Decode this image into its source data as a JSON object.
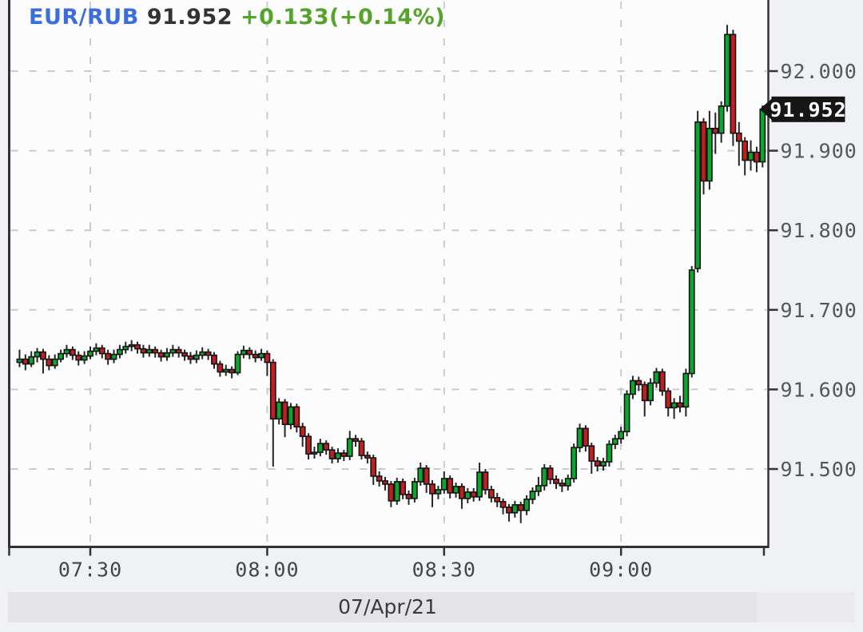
{
  "header": {
    "symbol": "EUR/RUB",
    "last_price": "91.952",
    "change": "+0.133(+0.14%)"
  },
  "price_tag": "91.952",
  "date_label": "07/Apr/21",
  "colors": {
    "up_candle": "#0ca52e",
    "down_candle": "#c01f21",
    "candle_outline": "#141414",
    "wick": "#26262a",
    "grid": "#c9cbd0",
    "axis_text_y": "#55565a",
    "axis_text_x": "#45464a",
    "axis_line": "#333333",
    "title_symbol": "#3c6edb",
    "title_price": "#333333",
    "title_change": "#54a42c",
    "tag_bg": "#161616",
    "tag_text": "#ffffff",
    "plot_bg": "#fcfcfd",
    "page_bg": "#f0f1f4",
    "datebar_bg": "#e4e4e7",
    "datebar_bg_right": "#ebebee",
    "date_text": "#3a3a3c"
  },
  "chart_data": {
    "type": "candlestick",
    "title": "EUR/RUB intraday",
    "symbol": "EUR/RUB",
    "interval": "1-minute",
    "date": "07/Apr/21",
    "last_price": 91.952,
    "change_text": "+0.133(+0.14%)",
    "x_ticks": [
      "07:30",
      "08:00",
      "08:30",
      "09:00"
    ],
    "y_ticks": [
      92.0,
      91.9,
      91.8,
      91.7,
      91.6,
      91.5
    ],
    "y_tick_labels": [
      "92.000",
      "91.900",
      "91.800",
      "91.700",
      "91.600",
      "91.500"
    ],
    "x_range": [
      "07:18",
      "09:24"
    ],
    "y_range": [
      91.4,
      92.09
    ],
    "grid": "dashed",
    "legend_position": "none",
    "candles": [
      [
        "07:18",
        91.634,
        91.65,
        91.628,
        91.638
      ],
      [
        "07:19",
        91.638,
        91.644,
        91.624,
        91.632
      ],
      [
        "07:20",
        91.632,
        91.648,
        91.628,
        91.641
      ],
      [
        "07:21",
        91.641,
        91.652,
        91.634,
        91.647
      ],
      [
        "07:22",
        91.647,
        91.651,
        91.62,
        91.638
      ],
      [
        "07:23",
        91.638,
        91.643,
        91.624,
        91.63
      ],
      [
        "07:24",
        91.63,
        91.644,
        91.626,
        91.638
      ],
      [
        "07:25",
        91.638,
        91.65,
        91.634,
        91.645
      ],
      [
        "07:26",
        91.645,
        91.656,
        91.64,
        91.65
      ],
      [
        "07:27",
        91.65,
        91.654,
        91.637,
        91.643
      ],
      [
        "07:28",
        91.643,
        91.648,
        91.63,
        91.637
      ],
      [
        "07:29",
        91.637,
        91.648,
        91.632,
        91.642
      ],
      [
        "07:30",
        91.642,
        91.654,
        91.638,
        91.648
      ],
      [
        "07:31",
        91.648,
        91.658,
        91.643,
        91.652
      ],
      [
        "07:32",
        91.652,
        91.656,
        91.639,
        91.645
      ],
      [
        "07:33",
        91.645,
        91.65,
        91.631,
        91.638
      ],
      [
        "07:34",
        91.638,
        91.65,
        91.633,
        91.644
      ],
      [
        "07:35",
        91.644,
        91.656,
        91.639,
        91.65
      ],
      [
        "07:36",
        91.65,
        91.66,
        91.645,
        91.654
      ],
      [
        "07:37",
        91.654,
        91.662,
        91.648,
        91.656
      ],
      [
        "07:38",
        91.656,
        91.66,
        91.645,
        91.651
      ],
      [
        "07:39",
        91.651,
        91.656,
        91.64,
        91.646
      ],
      [
        "07:40",
        91.646,
        91.656,
        91.641,
        91.65
      ],
      [
        "07:41",
        91.65,
        91.654,
        91.64,
        91.646
      ],
      [
        "07:42",
        91.646,
        91.65,
        91.635,
        91.641
      ],
      [
        "07:43",
        91.641,
        91.652,
        91.636,
        91.646
      ],
      [
        "07:44",
        91.646,
        91.656,
        91.641,
        91.65
      ],
      [
        "07:45",
        91.65,
        91.654,
        91.64,
        91.646
      ],
      [
        "07:46",
        91.646,
        91.65,
        91.636,
        91.642
      ],
      [
        "07:47",
        91.642,
        91.647,
        91.632,
        91.638
      ],
      [
        "07:48",
        91.638,
        91.649,
        91.633,
        91.643
      ],
      [
        "07:49",
        91.643,
        91.653,
        91.638,
        91.647
      ],
      [
        "07:50",
        91.647,
        91.651,
        91.637,
        91.643
      ],
      [
        "07:51",
        91.643,
        91.647,
        91.626,
        91.632
      ],
      [
        "07:52",
        91.632,
        91.636,
        91.616,
        91.622
      ],
      [
        "07:53",
        91.622,
        91.631,
        91.617,
        91.625
      ],
      [
        "07:54",
        91.625,
        91.629,
        91.614,
        91.621
      ],
      [
        "07:55",
        91.621,
        91.648,
        91.618,
        91.644
      ],
      [
        "07:56",
        91.644,
        91.655,
        91.639,
        91.649
      ],
      [
        "07:57",
        91.649,
        91.653,
        91.638,
        91.644
      ],
      [
        "07:58",
        91.644,
        91.649,
        91.634,
        91.64
      ],
      [
        "07:59",
        91.64,
        91.651,
        91.636,
        91.645
      ],
      [
        "08:00",
        91.645,
        91.649,
        91.617,
        91.634
      ],
      [
        "08:01",
        91.634,
        91.638,
        91.503,
        91.563
      ],
      [
        "08:02",
        91.563,
        91.589,
        91.556,
        91.584
      ],
      [
        "08:03",
        91.584,
        91.588,
        91.54,
        91.556
      ],
      [
        "08:04",
        91.556,
        91.583,
        91.55,
        91.578
      ],
      [
        "08:05",
        91.578,
        91.582,
        91.546,
        91.553
      ],
      [
        "08:06",
        91.553,
        91.558,
        91.528,
        91.541
      ],
      [
        "08:07",
        91.541,
        91.545,
        91.512,
        91.519
      ],
      [
        "08:08",
        91.519,
        91.528,
        91.513,
        91.521
      ],
      [
        "08:09",
        91.521,
        91.538,
        91.516,
        91.532
      ],
      [
        "08:10",
        91.532,
        91.536,
        91.518,
        91.524
      ],
      [
        "08:11",
        91.524,
        91.528,
        91.507,
        91.513
      ],
      [
        "08:12",
        91.513,
        91.526,
        91.508,
        91.52
      ],
      [
        "08:13",
        91.52,
        91.524,
        91.51,
        91.516
      ],
      [
        "08:14",
        91.516,
        91.548,
        91.511,
        91.538
      ],
      [
        "08:15",
        91.538,
        91.543,
        91.528,
        91.535
      ],
      [
        "08:16",
        91.535,
        91.539,
        91.512,
        91.517
      ],
      [
        "08:17",
        91.517,
        91.522,
        91.507,
        91.514
      ],
      [
        "08:18",
        91.514,
        91.518,
        91.48,
        91.491
      ],
      [
        "08:19",
        91.491,
        91.497,
        91.478,
        91.485
      ],
      [
        "08:20",
        91.485,
        91.49,
        91.473,
        91.481
      ],
      [
        "08:21",
        91.481,
        91.485,
        91.452,
        91.46
      ],
      [
        "08:22",
        91.46,
        91.489,
        91.455,
        91.484
      ],
      [
        "08:23",
        91.484,
        91.488,
        91.462,
        91.468
      ],
      [
        "08:24",
        91.468,
        91.473,
        91.455,
        91.463
      ],
      [
        "08:25",
        91.463,
        91.489,
        91.458,
        91.484
      ],
      [
        "08:26",
        91.484,
        91.508,
        91.479,
        91.501
      ],
      [
        "08:27",
        91.501,
        91.505,
        91.47,
        91.481
      ],
      [
        "08:28",
        91.481,
        91.486,
        91.452,
        91.469
      ],
      [
        "08:29",
        91.469,
        91.479,
        91.462,
        91.474
      ],
      [
        "08:30",
        91.474,
        91.497,
        91.469,
        91.488
      ],
      [
        "08:31",
        91.488,
        91.492,
        91.463,
        91.47
      ],
      [
        "08:32",
        91.47,
        91.483,
        91.464,
        91.478
      ],
      [
        "08:33",
        91.478,
        91.482,
        91.45,
        91.463
      ],
      [
        "08:34",
        91.463,
        91.476,
        91.457,
        91.471
      ],
      [
        "08:35",
        91.471,
        91.476,
        91.459,
        91.465
      ],
      [
        "08:36",
        91.465,
        91.508,
        91.46,
        91.496
      ],
      [
        "08:37",
        91.496,
        91.5,
        91.468,
        91.474
      ],
      [
        "08:38",
        91.474,
        91.479,
        91.458,
        91.464
      ],
      [
        "08:39",
        91.464,
        91.47,
        91.452,
        91.459
      ],
      [
        "08:40",
        91.459,
        91.463,
        91.443,
        91.452
      ],
      [
        "08:41",
        91.452,
        91.456,
        91.434,
        91.445
      ],
      [
        "08:42",
        91.445,
        91.46,
        91.439,
        91.455
      ],
      [
        "08:43",
        91.455,
        91.459,
        91.432,
        91.448
      ],
      [
        "08:44",
        91.448,
        91.467,
        91.442,
        91.462
      ],
      [
        "08:45",
        91.462,
        91.477,
        91.456,
        91.472
      ],
      [
        "08:46",
        91.472,
        91.49,
        91.466,
        91.479
      ],
      [
        "08:47",
        91.479,
        91.506,
        91.473,
        91.501
      ],
      [
        "08:48",
        91.501,
        91.505,
        91.481,
        91.487
      ],
      [
        "08:49",
        91.487,
        91.492,
        91.475,
        91.482
      ],
      [
        "08:50",
        91.482,
        91.487,
        91.471,
        91.479
      ],
      [
        "08:51",
        91.479,
        91.493,
        91.473,
        91.488
      ],
      [
        "08:52",
        91.488,
        91.532,
        91.483,
        91.527
      ],
      [
        "08:53",
        91.527,
        91.557,
        91.521,
        91.551
      ],
      [
        "08:54",
        91.551,
        91.555,
        91.522,
        91.529
      ],
      [
        "08:55",
        91.529,
        91.533,
        91.494,
        91.51
      ],
      [
        "08:56",
        91.51,
        91.515,
        91.497,
        91.504
      ],
      [
        "08:57",
        91.504,
        91.514,
        91.498,
        91.509
      ],
      [
        "08:58",
        91.509,
        91.536,
        91.503,
        91.531
      ],
      [
        "08:59",
        91.531,
        91.543,
        91.525,
        91.538
      ],
      [
        "09:00",
        91.538,
        91.553,
        91.532,
        91.547
      ],
      [
        "09:01",
        91.547,
        91.599,
        91.541,
        91.594
      ],
      [
        "09:02",
        91.594,
        91.617,
        91.588,
        91.611
      ],
      [
        "09:03",
        91.611,
        91.616,
        91.598,
        91.606
      ],
      [
        "09:04",
        91.606,
        91.61,
        91.566,
        91.586
      ],
      [
        "09:05",
        91.586,
        91.614,
        91.58,
        91.608
      ],
      [
        "09:06",
        91.608,
        91.627,
        91.602,
        91.622
      ],
      [
        "09:07",
        91.622,
        91.626,
        91.592,
        91.598
      ],
      [
        "09:08",
        91.598,
        91.602,
        91.566,
        91.577
      ],
      [
        "09:09",
        91.577,
        91.589,
        91.563,
        91.583
      ],
      [
        "09:10",
        91.583,
        91.592,
        91.571,
        91.578
      ],
      [
        "09:11",
        91.578,
        91.626,
        91.566,
        91.62
      ],
      [
        "09:12",
        91.62,
        91.755,
        91.615,
        91.75
      ],
      [
        "09:13",
        91.752,
        91.95,
        91.747,
        91.936
      ],
      [
        "09:14",
        91.936,
        91.941,
        91.845,
        91.862
      ],
      [
        "09:15",
        91.862,
        91.95,
        91.851,
        91.928
      ],
      [
        "09:16",
        91.928,
        91.948,
        91.896,
        91.922
      ],
      [
        "09:17",
        91.922,
        91.962,
        91.91,
        91.956
      ],
      [
        "09:18",
        91.956,
        92.058,
        91.949,
        92.046
      ],
      [
        "09:19",
        92.046,
        92.052,
        91.906,
        91.922
      ],
      [
        "09:20",
        91.922,
        91.936,
        91.881,
        91.912
      ],
      [
        "09:21",
        91.912,
        91.917,
        91.869,
        91.888
      ],
      [
        "09:22",
        91.888,
        91.913,
        91.875,
        91.898
      ],
      [
        "09:23",
        91.898,
        91.905,
        91.873,
        91.886
      ],
      [
        "09:24",
        91.886,
        91.957,
        91.879,
        91.952
      ]
    ]
  }
}
